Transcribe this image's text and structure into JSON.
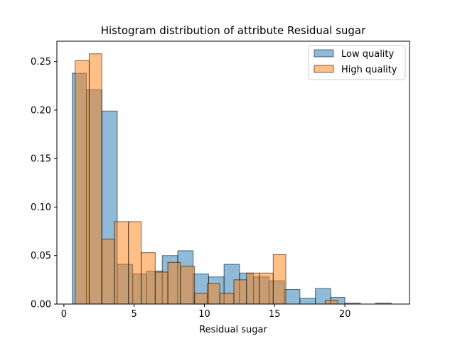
{
  "chart_data": {
    "type": "bar",
    "title": "Histogram distribution of attribute Residual sugar",
    "xlabel": "Residual sugar",
    "ylabel": "",
    "xlim": [
      -0.5,
      24.6
    ],
    "ylim": [
      0,
      0.271
    ],
    "xticks": [
      0,
      5,
      10,
      15,
      20
    ],
    "yticks": [
      0.0,
      0.05,
      0.1,
      0.15,
      0.2,
      0.25
    ],
    "xtick_labels": [
      "0",
      "5",
      "10",
      "15",
      "20"
    ],
    "ytick_labels": [
      "0.00",
      "0.05",
      "0.10",
      "0.15",
      "0.20",
      "0.25"
    ],
    "grid": false,
    "legend_position": "top-right",
    "series": [
      {
        "name": "Low quality",
        "color": "#1f77b4",
        "alpha": 0.5,
        "bins": [
          {
            "x0": 0.6,
            "x1": 1.6,
            "value": 0.238
          },
          {
            "x0": 1.6,
            "x1": 2.7,
            "value": 0.221
          },
          {
            "x0": 2.7,
            "x1": 3.8,
            "value": 0.199
          },
          {
            "x0": 3.8,
            "x1": 4.9,
            "value": 0.041
          },
          {
            "x0": 4.9,
            "x1": 5.9,
            "value": 0.031
          },
          {
            "x0": 5.9,
            "x1": 7.0,
            "value": 0.034
          },
          {
            "x0": 7.0,
            "x1": 8.1,
            "value": 0.05
          },
          {
            "x0": 8.1,
            "x1": 9.2,
            "value": 0.055
          },
          {
            "x0": 9.2,
            "x1": 10.3,
            "value": 0.031
          },
          {
            "x0": 10.3,
            "x1": 11.4,
            "value": 0.028
          },
          {
            "x0": 11.4,
            "x1": 12.5,
            "value": 0.041
          },
          {
            "x0": 12.5,
            "x1": 13.5,
            "value": 0.032
          },
          {
            "x0": 13.5,
            "x1": 14.6,
            "value": 0.028
          },
          {
            "x0": 14.6,
            "x1": 15.7,
            "value": 0.024
          },
          {
            "x0": 15.7,
            "x1": 16.8,
            "value": 0.015
          },
          {
            "x0": 16.8,
            "x1": 17.9,
            "value": 0.006
          },
          {
            "x0": 17.9,
            "x1": 19.0,
            "value": 0.016
          },
          {
            "x0": 19.0,
            "x1": 20.0,
            "value": 0.007
          },
          {
            "x0": 20.0,
            "x1": 21.1,
            "value": 0.001
          },
          {
            "x0": 21.1,
            "x1": 22.2,
            "value": 0.0
          },
          {
            "x0": 22.2,
            "x1": 23.3,
            "value": 0.001
          }
        ]
      },
      {
        "name": "High quality",
        "color": "#ff7f0e",
        "alpha": 0.5,
        "bins": [
          {
            "x0": 0.8,
            "x1": 1.8,
            "value": 0.251
          },
          {
            "x0": 1.8,
            "x1": 2.7,
            "value": 0.258
          },
          {
            "x0": 2.7,
            "x1": 3.6,
            "value": 0.067
          },
          {
            "x0": 3.6,
            "x1": 4.6,
            "value": 0.085
          },
          {
            "x0": 4.6,
            "x1": 5.5,
            "value": 0.085
          },
          {
            "x0": 5.5,
            "x1": 6.5,
            "value": 0.053
          },
          {
            "x0": 6.5,
            "x1": 7.4,
            "value": 0.033
          },
          {
            "x0": 7.4,
            "x1": 8.3,
            "value": 0.043
          },
          {
            "x0": 8.3,
            "x1": 9.3,
            "value": 0.039
          },
          {
            "x0": 9.3,
            "x1": 10.2,
            "value": 0.011
          },
          {
            "x0": 10.2,
            "x1": 11.1,
            "value": 0.021
          },
          {
            "x0": 11.1,
            "x1": 12.1,
            "value": 0.011
          },
          {
            "x0": 12.1,
            "x1": 13.0,
            "value": 0.025
          },
          {
            "x0": 13.0,
            "x1": 13.9,
            "value": 0.032
          },
          {
            "x0": 13.9,
            "x1": 14.9,
            "value": 0.032
          },
          {
            "x0": 14.9,
            "x1": 15.8,
            "value": 0.051
          },
          {
            "x0": 15.8,
            "x1": 16.7,
            "value": 0.0
          },
          {
            "x0": 16.7,
            "x1": 17.7,
            "value": 0.0
          },
          {
            "x0": 17.7,
            "x1": 18.6,
            "value": 0.0
          },
          {
            "x0": 18.6,
            "x1": 19.5,
            "value": 0.004
          }
        ]
      }
    ]
  }
}
